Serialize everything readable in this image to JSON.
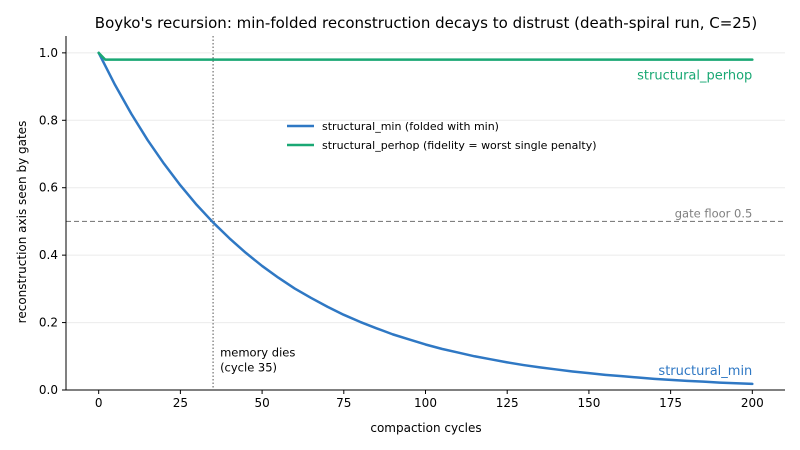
{
  "chart_data": {
    "type": "line",
    "title": "Boyko's recursion: min-folded reconstruction decays to distrust (death-spiral run, C=25)",
    "xlabel": "compaction cycles",
    "ylabel": "reconstruction axis seen by gates",
    "xlim": [
      -10,
      210
    ],
    "ylim": [
      0,
      1.05
    ],
    "x_ticks": [
      0,
      25,
      50,
      75,
      100,
      125,
      150,
      175,
      200
    ],
    "y_ticks": [
      0.0,
      0.2,
      0.4,
      0.6,
      0.8,
      1.0
    ],
    "grid": "horizontal",
    "legend_position": "upper-center",
    "series": [
      {
        "name": "structural_min (folded with min)",
        "label": "structural_min",
        "color": "#2f78c4",
        "x": [
          0,
          5,
          10,
          15,
          20,
          25,
          30,
          35,
          40,
          45,
          50,
          55,
          60,
          65,
          70,
          75,
          80,
          85,
          90,
          95,
          100,
          105,
          110,
          115,
          120,
          125,
          130,
          135,
          140,
          145,
          150,
          155,
          160,
          165,
          170,
          175,
          180,
          185,
          190,
          195,
          200
        ],
        "y": [
          1.0,
          0.905,
          0.819,
          0.741,
          0.671,
          0.607,
          0.549,
          0.497,
          0.45,
          0.407,
          0.368,
          0.333,
          0.301,
          0.273,
          0.247,
          0.223,
          0.202,
          0.183,
          0.165,
          0.15,
          0.135,
          0.122,
          0.111,
          0.1,
          0.091,
          0.082,
          0.074,
          0.067,
          0.061,
          0.055,
          0.05,
          0.045,
          0.041,
          0.037,
          0.033,
          0.03,
          0.027,
          0.025,
          0.022,
          0.02,
          0.018
        ]
      },
      {
        "name": "structural_perhop (fidelity = worst single penalty)",
        "label": "structural_perhop",
        "color": "#1aa874",
        "x": [
          0,
          1,
          2,
          200
        ],
        "y": [
          1.0,
          0.99,
          0.98,
          0.98
        ]
      }
    ],
    "reference_lines": [
      {
        "orientation": "horizontal",
        "y": 0.5,
        "label": "gate floor 0.5",
        "color": "#808080"
      },
      {
        "orientation": "vertical",
        "x": 35,
        "label_line1": "memory dies",
        "label_line2": "(cycle 35)",
        "color": "#555555"
      }
    ]
  }
}
